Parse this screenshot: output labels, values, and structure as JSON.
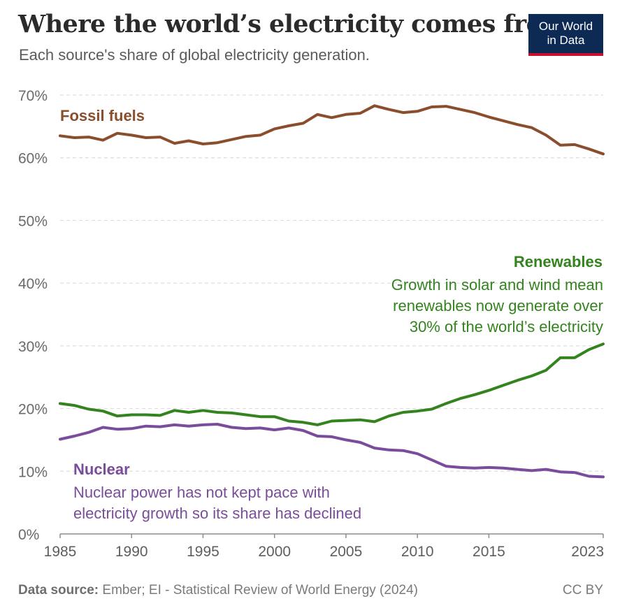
{
  "header": {
    "title": "Where the world’s electricity comes from",
    "subtitle": "Each source's share of global electricity generation."
  },
  "logo": {
    "line1": "Our World",
    "line2": "in Data",
    "bg_color": "#0d2a55",
    "accent_color": "#c8102e"
  },
  "annotations": {
    "fossil_label": "Fossil fuels",
    "renewables_label": "Renewables",
    "renewables_note": [
      "Growth in solar and wind mean",
      "renewables now generate over",
      "30% of the world’s electricity"
    ],
    "nuclear_label": "Nuclear",
    "nuclear_note": [
      "Nuclear power has not kept pace with",
      "electricity growth so its share has declined"
    ]
  },
  "footer": {
    "source_label": "Data source:",
    "source_text": "Ember; EI - Statistical Review of World Energy (2024)",
    "license": "CC BY"
  },
  "chart_data": {
    "type": "line",
    "title": "Where the world’s electricity comes from",
    "xlabel": "",
    "ylabel": "Share of global electricity generation",
    "xlim": [
      1985,
      2023
    ],
    "ylim": [
      0,
      70
    ],
    "x_ticks": [
      1985,
      1990,
      1995,
      2000,
      2005,
      2010,
      2015,
      2023
    ],
    "x_tick_labels": [
      "1985",
      "1990",
      "1995",
      "2000",
      "2005",
      "2010",
      "2015",
      "2023"
    ],
    "y_ticks": [
      0,
      10,
      20,
      30,
      40,
      50,
      60,
      70
    ],
    "y_tick_labels": [
      "0%",
      "10%",
      "20%",
      "30%",
      "40%",
      "50%",
      "60%",
      "70%"
    ],
    "grid": true,
    "x": [
      1985,
      1986,
      1987,
      1988,
      1989,
      1990,
      1991,
      1992,
      1993,
      1994,
      1995,
      1996,
      1997,
      1998,
      1999,
      2000,
      2001,
      2002,
      2003,
      2004,
      2005,
      2006,
      2007,
      2008,
      2009,
      2010,
      2011,
      2012,
      2013,
      2014,
      2015,
      2016,
      2017,
      2018,
      2019,
      2020,
      2021,
      2022,
      2023
    ],
    "series": [
      {
        "name": "Fossil fuels",
        "color": "#8a4e2c",
        "values": [
          63.5,
          63.2,
          63.3,
          62.8,
          63.9,
          63.6,
          63.2,
          63.3,
          62.3,
          62.7,
          62.2,
          62.4,
          62.9,
          63.4,
          63.6,
          64.6,
          65.1,
          65.5,
          66.9,
          66.4,
          66.9,
          67.1,
          68.3,
          67.7,
          67.2,
          67.4,
          68.1,
          68.2,
          67.7,
          67.2,
          66.5,
          65.9,
          65.3,
          64.8,
          63.6,
          62.0,
          62.1,
          61.4,
          60.6
        ]
      },
      {
        "name": "Renewables",
        "color": "#33841e",
        "values": [
          20.8,
          20.5,
          19.9,
          19.6,
          18.8,
          19.0,
          19.0,
          18.9,
          19.7,
          19.4,
          19.7,
          19.4,
          19.3,
          19.0,
          18.7,
          18.7,
          18.0,
          17.8,
          17.4,
          18.0,
          18.1,
          18.2,
          17.9,
          18.8,
          19.4,
          19.6,
          19.9,
          20.8,
          21.6,
          22.2,
          22.9,
          23.7,
          24.5,
          25.2,
          26.1,
          28.1,
          28.1,
          29.4,
          30.3
        ]
      },
      {
        "name": "Nuclear",
        "color": "#7a4d9c",
        "values": [
          15.1,
          15.6,
          16.2,
          17.0,
          16.7,
          16.8,
          17.2,
          17.1,
          17.4,
          17.2,
          17.4,
          17.5,
          17.0,
          16.8,
          16.9,
          16.6,
          16.9,
          16.5,
          15.6,
          15.5,
          15.0,
          14.6,
          13.7,
          13.4,
          13.3,
          12.8,
          11.8,
          10.8,
          10.6,
          10.5,
          10.6,
          10.5,
          10.3,
          10.1,
          10.3,
          9.9,
          9.8,
          9.2,
          9.1
        ]
      }
    ]
  }
}
